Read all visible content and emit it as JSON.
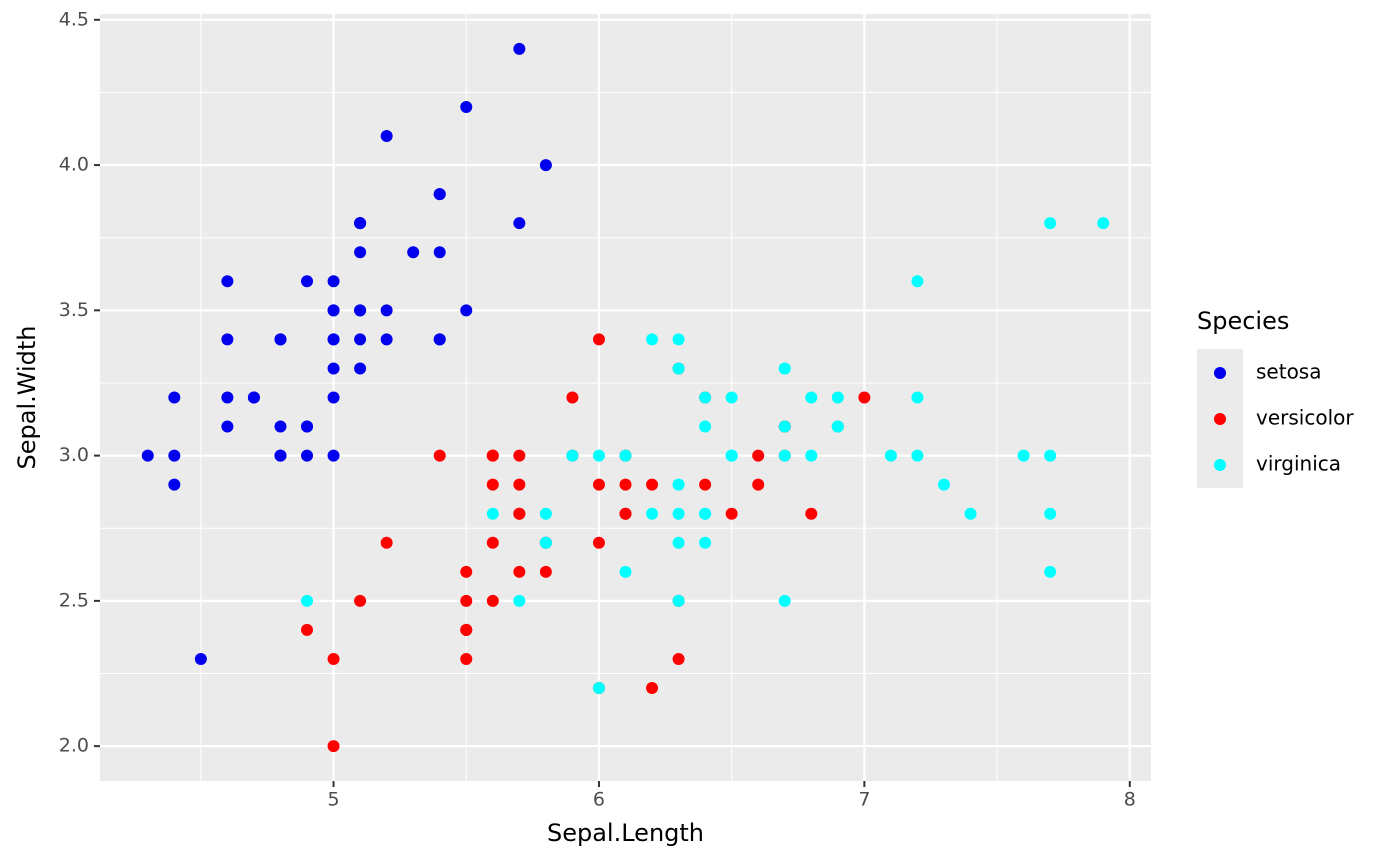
{
  "chart_data": {
    "type": "scatter",
    "x_label": "Sepal.Length",
    "y_label": "Sepal.Width",
    "legend_title": "Species",
    "xlim": [
      4.12,
      8.08
    ],
    "ylim": [
      1.88,
      4.52
    ],
    "xticks": [
      5,
      6,
      7,
      8
    ],
    "yticks": [
      {
        "value": 2,
        "label": "2.0"
      },
      2.5,
      {
        "value": 3,
        "label": "3.0"
      },
      3.5,
      {
        "value": 4,
        "label": "4.0"
      },
      4.5
    ],
    "x_minor_ticks": [
      4.5,
      5.5,
      6.5,
      7.5
    ],
    "y_minor_ticks": [
      2.25,
      2.75,
      3.25,
      3.75,
      4.25
    ],
    "grid": true,
    "legend": "right",
    "series": [
      {
        "name": "setosa",
        "color": "#0000ee",
        "x": [
          5.1,
          4.9,
          4.7,
          4.6,
          5.0,
          5.4,
          4.6,
          5.0,
          4.4,
          4.9,
          5.4,
          4.8,
          4.8,
          4.3,
          5.8,
          5.7,
          5.4,
          5.1,
          5.7,
          5.1,
          5.4,
          5.1,
          4.6,
          5.1,
          4.8,
          5.0,
          5.0,
          5.2,
          5.2,
          4.7,
          4.8,
          5.4,
          5.2,
          5.5,
          4.9,
          5.0,
          5.5,
          4.9,
          4.4,
          5.1,
          5.0,
          4.5,
          4.4,
          5.0,
          5.1,
          4.8,
          5.1,
          4.6,
          5.3,
          5.0
        ],
        "y": [
          3.5,
          3.0,
          3.2,
          3.1,
          3.6,
          3.9,
          3.4,
          3.4,
          2.9,
          3.1,
          3.7,
          3.4,
          3.0,
          3.0,
          4.0,
          4.4,
          3.9,
          3.5,
          3.8,
          3.8,
          3.4,
          3.7,
          3.6,
          3.3,
          3.4,
          3.0,
          3.4,
          3.5,
          3.4,
          3.2,
          3.1,
          3.4,
          4.1,
          4.2,
          3.1,
          3.2,
          3.5,
          3.6,
          3.0,
          3.4,
          3.5,
          2.3,
          3.2,
          3.5,
          3.8,
          3.0,
          3.8,
          3.2,
          3.7,
          3.3
        ]
      },
      {
        "name": "versicolor",
        "color": "#ff0000",
        "x": [
          7.0,
          6.4,
          6.9,
          5.5,
          6.5,
          5.7,
          6.3,
          4.9,
          6.6,
          5.2,
          5.0,
          5.9,
          6.0,
          6.1,
          5.6,
          6.7,
          5.6,
          5.8,
          6.2,
          5.6,
          5.9,
          6.1,
          6.3,
          6.1,
          6.4,
          6.6,
          6.8,
          6.7,
          6.0,
          5.7,
          5.5,
          5.5,
          5.8,
          6.0,
          5.4,
          6.0,
          6.7,
          6.3,
          5.6,
          5.5,
          5.5,
          6.1,
          5.8,
          5.0,
          5.6,
          5.7,
          5.7,
          6.2,
          5.1,
          5.7
        ],
        "y": [
          3.2,
          3.2,
          3.1,
          2.3,
          2.8,
          2.8,
          3.3,
          2.4,
          2.9,
          2.7,
          2.0,
          3.0,
          2.2,
          2.9,
          2.9,
          3.1,
          3.0,
          2.7,
          2.2,
          2.5,
          3.2,
          2.8,
          2.5,
          2.8,
          2.9,
          3.0,
          2.8,
          3.0,
          2.9,
          2.6,
          2.4,
          2.4,
          2.7,
          2.7,
          3.0,
          3.4,
          3.1,
          2.3,
          3.0,
          2.5,
          2.6,
          3.0,
          2.6,
          2.3,
          2.7,
          3.0,
          2.9,
          2.9,
          2.5,
          2.8
        ]
      },
      {
        "name": "virginica",
        "color": "#00ffff",
        "x": [
          6.3,
          5.8,
          7.1,
          6.3,
          6.5,
          7.6,
          4.9,
          7.3,
          6.7,
          7.2,
          6.5,
          6.4,
          6.8,
          5.7,
          5.8,
          6.4,
          6.5,
          7.7,
          7.7,
          6.0,
          6.9,
          5.6,
          7.7,
          6.3,
          6.7,
          7.2,
          6.2,
          6.1,
          6.4,
          7.2,
          7.4,
          7.9,
          6.4,
          6.3,
          6.1,
          7.7,
          6.3,
          6.4,
          6.0,
          6.9,
          6.7,
          6.9,
          5.8,
          6.8,
          6.7,
          6.7,
          6.3,
          6.5,
          6.2,
          5.9
        ],
        "y": [
          3.3,
          2.7,
          3.0,
          2.9,
          3.0,
          3.0,
          2.5,
          2.9,
          2.5,
          3.6,
          3.2,
          2.7,
          3.0,
          2.5,
          2.8,
          3.2,
          3.0,
          3.8,
          2.6,
          2.2,
          3.2,
          2.8,
          2.8,
          2.7,
          3.3,
          3.2,
          2.8,
          3.0,
          2.8,
          3.0,
          2.8,
          3.8,
          2.8,
          2.8,
          2.6,
          3.0,
          3.4,
          3.1,
          3.0,
          3.1,
          3.1,
          3.1,
          2.7,
          3.2,
          3.3,
          3.0,
          2.5,
          3.0,
          3.4,
          3.0
        ]
      }
    ]
  }
}
